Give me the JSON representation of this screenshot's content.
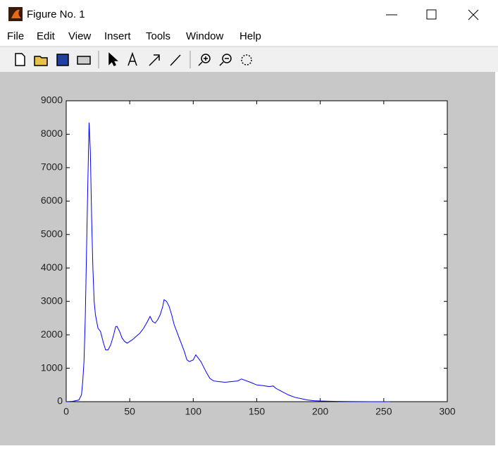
{
  "window": {
    "title": "Figure No. 1",
    "menu": [
      "File",
      "Edit",
      "View",
      "Insert",
      "Tools",
      "Window",
      "Help"
    ]
  },
  "chart_data": {
    "type": "line",
    "x": [
      0,
      5,
      10,
      12,
      13,
      14,
      15,
      16,
      17,
      18,
      19,
      20,
      21,
      22,
      23,
      25,
      27,
      29,
      31,
      33,
      35,
      37,
      39,
      40,
      42,
      44,
      46,
      48,
      50,
      52,
      55,
      58,
      61,
      64,
      66,
      68,
      70,
      72,
      74,
      76,
      77,
      79,
      81,
      83,
      85,
      88,
      90,
      93,
      95,
      97,
      100,
      102,
      104,
      106,
      108,
      110,
      113,
      116,
      120,
      125,
      130,
      135,
      138,
      140,
      145,
      150,
      155,
      160,
      163,
      165,
      170,
      175,
      180,
      185,
      190,
      195,
      200,
      210,
      220,
      230,
      240,
      250,
      255
    ],
    "series": [
      {
        "color": "#0000ff",
        "values": [
          0,
          10,
          50,
          200,
          600,
          1200,
          2500,
          4500,
          6500,
          8350,
          7500,
          5500,
          4000,
          3000,
          2600,
          2200,
          2100,
          1800,
          1550,
          1550,
          1700,
          1950,
          2250,
          2250,
          2100,
          1900,
          1800,
          1750,
          1800,
          1850,
          1950,
          2050,
          2200,
          2400,
          2550,
          2400,
          2350,
          2450,
          2600,
          2850,
          3050,
          3000,
          2850,
          2600,
          2300,
          2000,
          1800,
          1500,
          1250,
          1200,
          1250,
          1400,
          1300,
          1200,
          1050,
          900,
          700,
          620,
          600,
          580,
          600,
          620,
          680,
          650,
          580,
          500,
          480,
          450,
          470,
          400,
          300,
          200,
          130,
          90,
          50,
          30,
          20,
          10,
          5,
          2,
          1,
          0,
          0
        ]
      }
    ],
    "xlim": [
      0,
      300
    ],
    "ylim": [
      0,
      9000
    ],
    "xticks": [
      0,
      50,
      100,
      150,
      200,
      250,
      300
    ],
    "yticks": [
      0,
      1000,
      2000,
      3000,
      4000,
      5000,
      6000,
      7000,
      8000,
      9000
    ]
  }
}
